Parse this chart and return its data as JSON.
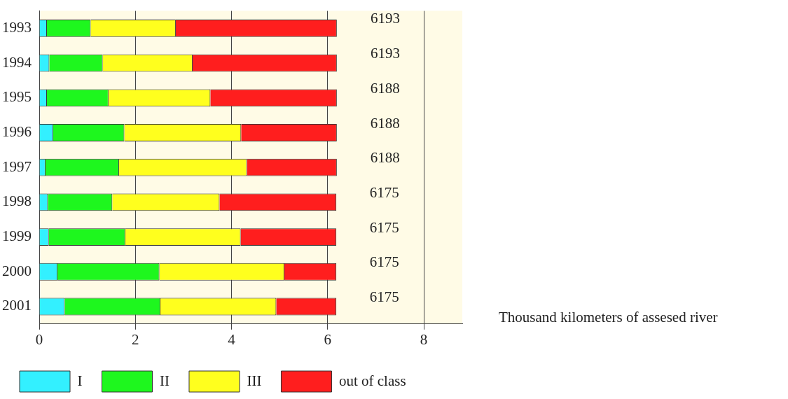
{
  "chart_data": {
    "type": "bar",
    "orientation": "horizontal",
    "stacked": true,
    "xlabel": "Thousand kilometers of assesed river",
    "categories": [
      "1993",
      "1994",
      "1995",
      "1996",
      "1997",
      "1998",
      "1999",
      "2000",
      "2001"
    ],
    "series": [
      {
        "name": "I",
        "color": "#33f0ff",
        "values": [
          0.16,
          0.21,
          0.16,
          0.29,
          0.13,
          0.18,
          0.2,
          0.38,
          0.53
        ]
      },
      {
        "name": "II",
        "color": "#1ef71e",
        "values": [
          0.91,
          1.11,
          1.28,
          1.48,
          1.53,
          1.34,
          1.59,
          2.12,
          1.99
        ]
      },
      {
        "name": "III",
        "color": "#ffff1e",
        "values": [
          1.77,
          1.87,
          2.12,
          2.43,
          2.66,
          2.23,
          2.4,
          2.6,
          2.41
        ]
      },
      {
        "name": "out of class",
        "color": "#ff1e1e",
        "values": [
          3.35,
          3.0,
          2.63,
          1.99,
          1.87,
          2.43,
          1.99,
          1.08,
          1.25
        ]
      }
    ],
    "annotations": [
      {
        "text": "6193",
        "x": 6.193,
        "y": "1993"
      },
      {
        "text": "6193",
        "x": 6.193,
        "y": "1994"
      },
      {
        "text": "6188",
        "x": 6.188,
        "y": "1995"
      },
      {
        "text": "6188",
        "x": 6.188,
        "y": "1996"
      },
      {
        "text": "6188",
        "x": 6.188,
        "y": "1997"
      },
      {
        "text": "6175",
        "x": 6.175,
        "y": "1998"
      },
      {
        "text": "6175",
        "x": 6.175,
        "y": "1999"
      },
      {
        "text": "6175",
        "x": 6.175,
        "y": "2000"
      },
      {
        "text": "6175",
        "x": 6.175,
        "y": "2001"
      }
    ],
    "xlim": [
      0,
      8.8
    ],
    "xticks": [
      0,
      2,
      4,
      6,
      8
    ],
    "grid": "x",
    "legend": "bottom"
  }
}
